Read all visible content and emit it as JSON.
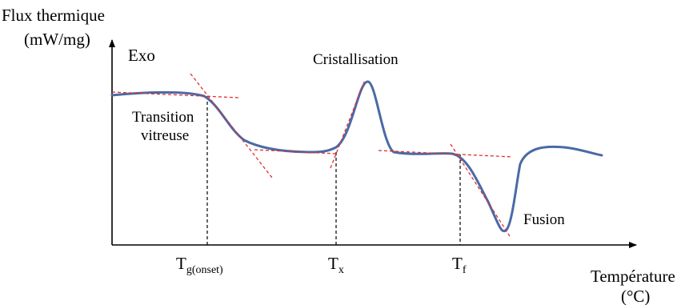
{
  "axes": {
    "y_title_line1": "Flux thermique",
    "y_title_line2": "(mW/mg)",
    "x_title_line1": "Température",
    "x_title_line2": "(°C)",
    "exo_label": "Exo"
  },
  "annotations": {
    "glass_transition_line1": "Transition",
    "glass_transition_line2": "vitreuse",
    "crystallization": "Cristallisation",
    "fusion": "Fusion"
  },
  "ticks": {
    "tg": {
      "main": "T",
      "sub": "g(onset)"
    },
    "tx": {
      "main": "T",
      "sub": "x"
    },
    "tf": {
      "main": "T",
      "sub": "f"
    }
  },
  "colors": {
    "curve": "#4a6aa6",
    "tangent": "#e03030",
    "axis": "#000000",
    "guide": "#000000"
  }
}
